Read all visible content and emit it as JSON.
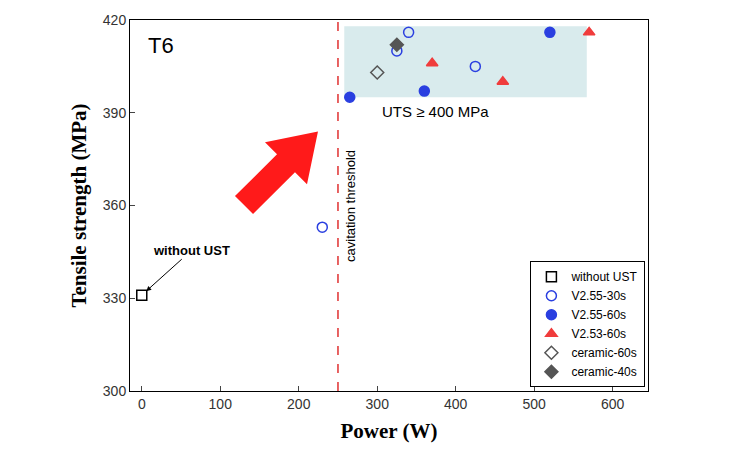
{
  "chart_data": {
    "type": "scatter",
    "title": "T6",
    "x_label": "Power (W)",
    "y_label": "Tensile strength (MPa)",
    "xlim": [
      -15,
      645
    ],
    "ylim": [
      300,
      420
    ],
    "xticks": [
      0,
      100,
      200,
      300,
      400,
      500,
      600
    ],
    "yticks": [
      300,
      330,
      360,
      390,
      420
    ],
    "grid": false,
    "legend": "bottom right",
    "series": [
      {
        "name": "without UST",
        "color": "#000000",
        "marker": "square-open",
        "x": [
          0
        ],
        "values": [
          331
        ]
      },
      {
        "name": "V2.55-30s",
        "color": "#2a3fe0",
        "marker": "circle-open",
        "x": [
          230,
          325,
          340,
          425
        ],
        "values": [
          353,
          410,
          416,
          405
        ]
      },
      {
        "name": "V2.55-60s",
        "color": "#2a3fe0",
        "marker": "circle",
        "x": [
          265,
          360,
          520
        ],
        "values": [
          395,
          397,
          416
        ]
      },
      {
        "name": "V2.53-60s",
        "color": "#f03c3c",
        "marker": "triangle-up",
        "x": [
          370,
          460,
          570
        ],
        "values": [
          406,
          400,
          416
        ]
      },
      {
        "name": "ceramic-60s",
        "color": "#555555",
        "marker": "diamond-open",
        "x": [
          300
        ],
        "values": [
          403
        ]
      },
      {
        "name": "ceramic-40s",
        "color": "#555555",
        "marker": "diamond",
        "x": [
          325
        ],
        "values": [
          412
        ]
      }
    ],
    "annotations": [
      {
        "text": "without UST",
        "x": 0,
        "y": 331
      },
      {
        "text": "cavitation threshold",
        "x": 250
      },
      {
        "text": "UTS ≥ 400 MPa",
        "region": {
          "x": [
            258,
            567
          ],
          "y": [
            395,
            418
          ]
        }
      }
    ]
  }
}
